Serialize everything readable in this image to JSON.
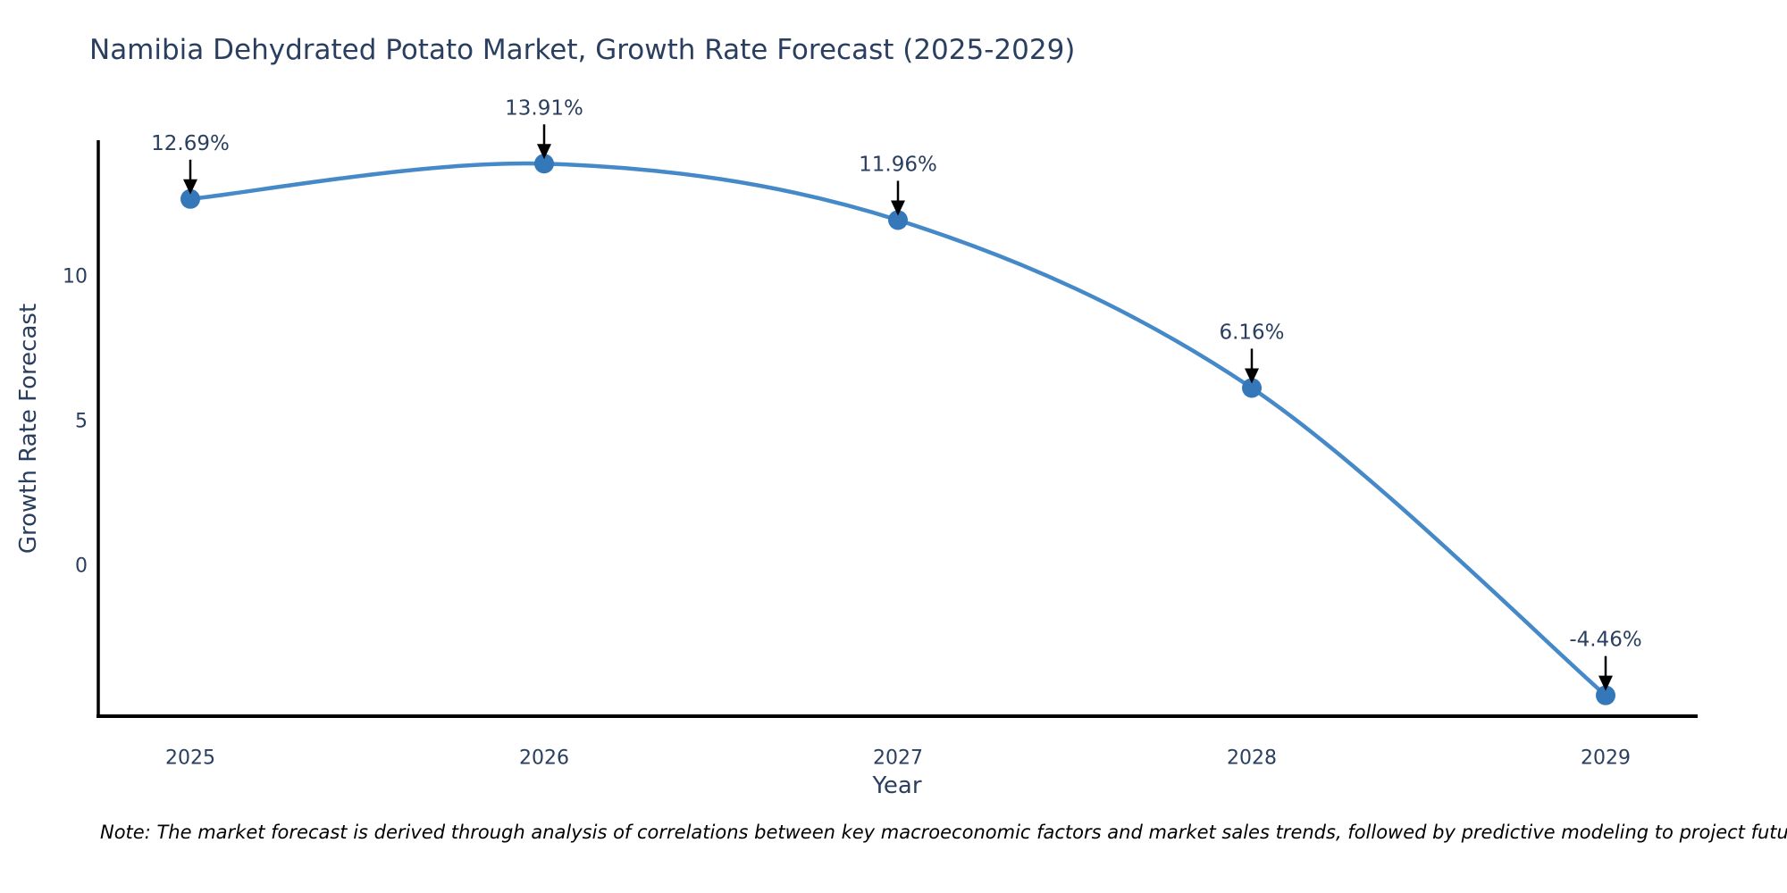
{
  "chart_data": {
    "type": "line",
    "title": "Namibia Dehydrated Potato Market, Growth Rate Forecast (2025-2029)",
    "xlabel": "Year",
    "ylabel": "Growth Rate Forecast",
    "categories": [
      "2025",
      "2026",
      "2027",
      "2028",
      "2029"
    ],
    "values": [
      12.69,
      13.91,
      11.96,
      6.16,
      -4.46
    ],
    "point_labels": [
      "12.69%",
      "13.91%",
      "11.96%",
      "6.16%",
      "-4.46%"
    ],
    "y_ticks": [
      0,
      5,
      10
    ],
    "ylim": [
      -5.18,
      14.72
    ],
    "line_shape": "spline",
    "grid": false,
    "legend": "none",
    "colors": {
      "line": "#4589c8",
      "marker": "#3478ba",
      "axis": "#000000",
      "text": "#2a3f5f",
      "annotation_arrow": "#000000"
    }
  },
  "note": "Note: The market forecast is derived through analysis of correlations between key macroeconomic factors and market sales trends, followed by predictive modeling to project future sales"
}
